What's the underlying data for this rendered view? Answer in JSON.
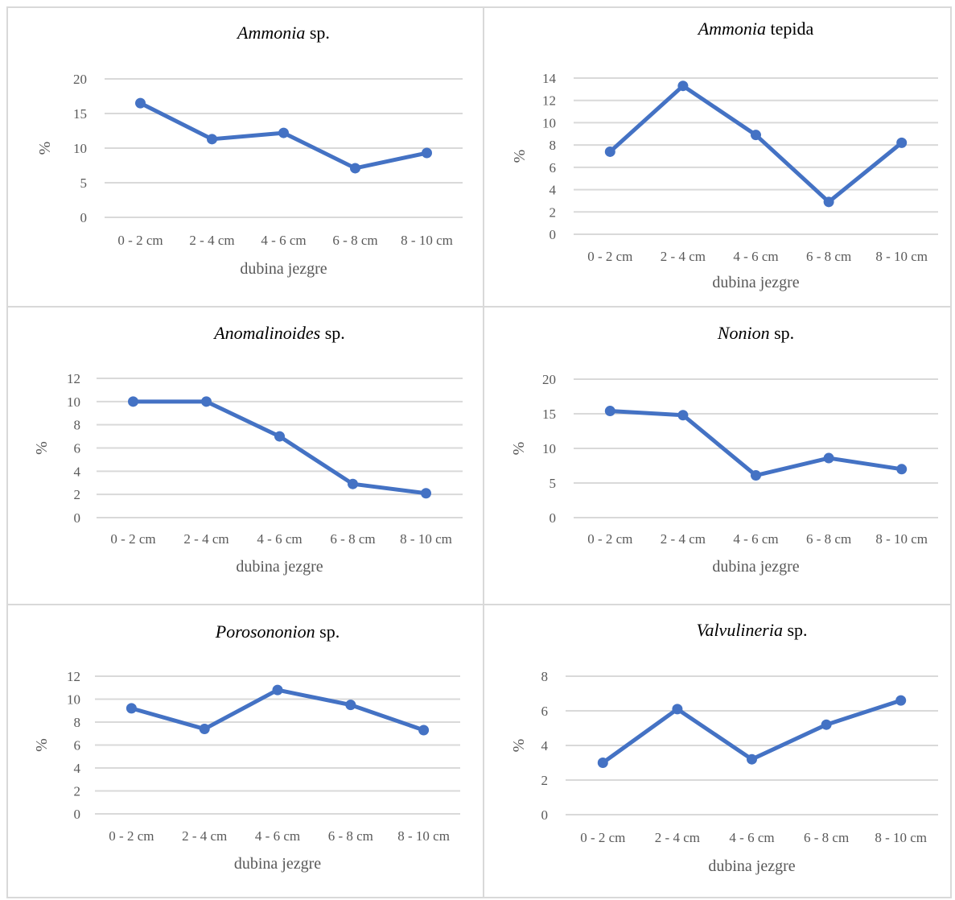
{
  "style": {
    "series_color": "#4472c4",
    "grid_color": "#d9d9d9",
    "text_color": "#595959"
  },
  "chart_data": [
    {
      "type": "line",
      "title": {
        "italic": "Ammonia",
        "rest": "sp."
      },
      "xlabel": "dubina jezgre",
      "ylabel": "%",
      "categories": [
        "0 - 2 cm",
        "2 - 4 cm",
        "4 - 6 cm",
        "6 - 8 cm",
        "8 - 10 cm"
      ],
      "values": [
        16.5,
        11.3,
        12.2,
        7.1,
        9.3
      ],
      "ylim": [
        0,
        20
      ],
      "yticks": [
        "0",
        "5",
        "10",
        "15",
        "20"
      ],
      "grid": true
    },
    {
      "type": "line",
      "title": {
        "italic": "Ammonia",
        "rest": "tepida"
      },
      "xlabel": "dubina jezgre",
      "ylabel": "%",
      "categories": [
        "0 - 2 cm",
        "2 - 4 cm",
        "4 - 6 cm",
        "6 - 8 cm",
        "8 - 10 cm"
      ],
      "values": [
        7.4,
        13.3,
        8.9,
        2.9,
        8.2
      ],
      "ylim": [
        0,
        14
      ],
      "yticks": [
        "0",
        "2",
        "4",
        "6",
        "8",
        "10",
        "12",
        "14"
      ],
      "grid": true
    },
    {
      "type": "line",
      "title": {
        "italic": "Anomalinoides",
        "rest": "sp."
      },
      "xlabel": "dubina jezgre",
      "ylabel": "%",
      "categories": [
        "0 - 2 cm",
        "2 - 4 cm",
        "4 - 6 cm",
        "6 - 8 cm",
        "8 - 10 cm"
      ],
      "values": [
        10.0,
        10.0,
        7.0,
        2.9,
        2.1
      ],
      "ylim": [
        0,
        12
      ],
      "yticks": [
        "0",
        "2",
        "4",
        "6",
        "8",
        "10",
        "12"
      ],
      "grid": true
    },
    {
      "type": "line",
      "title": {
        "italic": "Nonion",
        "rest": "sp."
      },
      "xlabel": "dubina jezgre",
      "ylabel": "%",
      "categories": [
        "0 - 2 cm",
        "2 - 4 cm",
        "4 - 6 cm",
        "6 - 8 cm",
        "8 - 10 cm"
      ],
      "values": [
        15.4,
        14.8,
        6.1,
        8.6,
        7.0
      ],
      "ylim": [
        0,
        20
      ],
      "yticks": [
        "0",
        "5",
        "10",
        "15",
        "20"
      ],
      "grid": true
    },
    {
      "type": "line",
      "title": {
        "italic": "Porosononion",
        "rest": "sp."
      },
      "xlabel": "dubina jezgre",
      "ylabel": "%",
      "categories": [
        "0 - 2 cm",
        "2 - 4 cm",
        "4 - 6 cm",
        "6 - 8 cm",
        "8 - 10 cm"
      ],
      "values": [
        9.2,
        7.4,
        10.8,
        9.5,
        7.3
      ],
      "ylim": [
        0,
        12
      ],
      "yticks": [
        "0",
        "2",
        "4",
        "6",
        "8",
        "10",
        "12"
      ],
      "grid": true
    },
    {
      "type": "line",
      "title": {
        "italic": "Valvulineria",
        "rest": "sp."
      },
      "xlabel": "dubina jezgre",
      "ylabel": "%",
      "categories": [
        "0 - 2 cm",
        "2 - 4 cm",
        "4 - 6 cm",
        "6 - 8 cm",
        "8 - 10 cm"
      ],
      "values": [
        3.0,
        6.1,
        3.2,
        5.2,
        6.6
      ],
      "ylim": [
        0,
        8
      ],
      "yticks": [
        "0",
        "2",
        "4",
        "6",
        "8"
      ],
      "grid": true
    }
  ]
}
